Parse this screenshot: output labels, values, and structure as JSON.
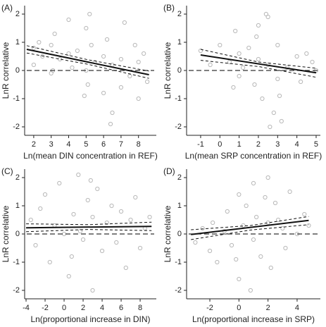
{
  "chart_data": [
    {
      "type": "scatter",
      "panel": "(A)",
      "xlabel": "Ln(mean DIN concentration in REF)",
      "ylabel": "LnR correlative",
      "xlim": [
        1.48,
        9.02
      ],
      "ylim": [
        -2.3,
        2.3
      ],
      "xticks": [
        2,
        3,
        4,
        5,
        6,
        7,
        8
      ],
      "yticks": [
        -2,
        -1,
        0,
        1,
        2
      ],
      "hline": 0,
      "series": [
        {
          "color": "#b8b8b8",
          "x": [
            2,
            2,
            2.3,
            2.5,
            3,
            3,
            3.2,
            3.5,
            4,
            4,
            4.2,
            4.5,
            5,
            5,
            5.1,
            5.3,
            5.5,
            6,
            6,
            6.2,
            6.5,
            6.5,
            7,
            7,
            7.2,
            7.5,
            8,
            8,
            8.3,
            8.5,
            5.2,
            6.4,
            3.1,
            4.9,
            7.8
          ],
          "y": [
            0.8,
            0.2,
            1.0,
            0.5,
            0.9,
            -0.1,
            1.3,
            0.4,
            0.6,
            1.8,
            0.1,
            0.7,
            1.5,
            0.0,
            -0.5,
            0.9,
            0.3,
            0.5,
            -0.8,
            1.1,
            -1.5,
            0.2,
            0.4,
            -0.6,
            1.7,
            -0.2,
            0.3,
            -1.0,
            0.6,
            -0.4,
            2.0,
            -1.9,
            0.0,
            -0.9,
            0.9
          ]
        }
      ],
      "fit": {
        "x": [
          1.6,
          8.6
        ],
        "y": [
          0.75,
          -0.15
        ]
      },
      "ci_upper": {
        "x": [
          1.6,
          5.1,
          8.6
        ],
        "y": [
          0.88,
          0.38,
          -0.02
        ]
      },
      "ci_lower": {
        "x": [
          1.6,
          5.1,
          8.6
        ],
        "y": [
          0.62,
          0.22,
          -0.28
        ]
      }
    },
    {
      "type": "scatter",
      "panel": "(B)",
      "xlabel": "Ln(mean SRP concentration in REF)",
      "ylabel": "LnR correlative",
      "xlim": [
        -1.73,
        5.22
      ],
      "ylim": [
        -2.3,
        2.3
      ],
      "xticks": [
        -1,
        0,
        1,
        2,
        3,
        4,
        5
      ],
      "yticks": [
        -2,
        -1,
        0,
        1,
        2
      ],
      "hline": 0,
      "series": [
        {
          "color": "#b8b8b8",
          "x": [
            -1,
            -0.5,
            0,
            0.5,
            0.8,
            1,
            1,
            1.2,
            1.5,
            1.8,
            2,
            2,
            2.2,
            2.5,
            2.5,
            2.8,
            3,
            3,
            3.2,
            3.5,
            4,
            4.2,
            4.5,
            5,
            0.7,
            2.4,
            3.1,
            1.9,
            2.6,
            4.8
          ],
          "y": [
            0.7,
            0.2,
            0.9,
            0.3,
            1.4,
            -0.2,
            0.6,
            0.1,
            0.8,
            -0.5,
            1.6,
            0.4,
            -1.0,
            1.9,
            0.2,
            -1.5,
            0.9,
            -0.3,
            -1.8,
            0.1,
            0.5,
            -0.4,
            0.6,
            0.0,
            -0.6,
            2.0,
            -0.9,
            1.2,
            -2.0,
            0.3
          ]
        }
      ],
      "fit": {
        "x": [
          -1,
          5
        ],
        "y": [
          0.55,
          -0.08
        ]
      },
      "ci_upper": {
        "x": [
          -1,
          2,
          5
        ],
        "y": [
          0.75,
          0.3,
          0.08
        ]
      },
      "ci_lower": {
        "x": [
          -1,
          2,
          5
        ],
        "y": [
          0.36,
          0.14,
          -0.24
        ]
      }
    },
    {
      "type": "scatter",
      "panel": "(C)",
      "xlabel": "Ln(proportional increase in DIN)",
      "ylabel": "LnR correlative",
      "xlim": [
        -4.15,
        9.7
      ],
      "ylim": [
        -2.3,
        2.3
      ],
      "xticks": [
        -4,
        -2,
        0,
        2,
        4,
        6,
        8
      ],
      "yticks": [
        -2,
        -1,
        0,
        1,
        2
      ],
      "hline": 0,
      "series": [
        {
          "color": "#b8b8b8",
          "x": [
            -3.5,
            -3,
            -2.5,
            -2,
            -1.5,
            -1,
            -0.5,
            0,
            0.5,
            1,
            1.5,
            2,
            2.5,
            3,
            3,
            3.5,
            4,
            4.5,
            5,
            5.5,
            6,
            6.5,
            7,
            7.5,
            8,
            8.5,
            9,
            2.8,
            0.8,
            1.7
          ],
          "y": [
            0.5,
            -0.4,
            0.9,
            1.4,
            -1.0,
            0.3,
            1.8,
            0.0,
            -1.5,
            0.7,
            2.1,
            -0.2,
            1.2,
            0.6,
            -2.0,
            1.6,
            -0.6,
            0.4,
            1.0,
            -0.3,
            0.8,
            -1.2,
            0.5,
            1.3,
            -0.5,
            0.2,
            0.6,
            1.9,
            -0.8,
            0.1
          ]
        }
      ],
      "fit": {
        "x": [
          -4,
          9.2
        ],
        "y": [
          0.22,
          0.27
        ]
      },
      "ci_upper": {
        "x": [
          -4,
          2.6,
          9.2
        ],
        "y": [
          0.36,
          0.33,
          0.42
        ]
      },
      "ci_lower": {
        "x": [
          -4,
          2.6,
          9.2
        ],
        "y": [
          0.08,
          0.16,
          0.12
        ]
      }
    },
    {
      "type": "scatter",
      "panel": "(D)",
      "xlabel": "Ln(proportional increase in SRP)",
      "ylabel": "LnR correlative",
      "xlim": [
        -3.6,
        5.6
      ],
      "ylim": [
        -2.3,
        2.3
      ],
      "xticks": [
        -2,
        0,
        2,
        4
      ],
      "yticks": [
        -2,
        -1,
        0,
        1,
        2
      ],
      "hline": 0,
      "series": [
        {
          "color": "#b8b8b8",
          "x": [
            -3,
            -2.5,
            -2,
            -1.8,
            -1.5,
            -1,
            -0.8,
            -0.5,
            0,
            0,
            0.3,
            0.5,
            1,
            1,
            1.2,
            1.5,
            2,
            2,
            2.2,
            2.5,
            3,
            3.2,
            3.5,
            4,
            4.5,
            0.8,
            1.8,
            -0.2,
            2.7,
            4.8
          ],
          "y": [
            -0.3,
            0.2,
            -0.6,
            0.4,
            -1.0,
            0.1,
            0.8,
            -0.4,
            1.4,
            -1.6,
            0.3,
            1.0,
            -0.2,
            1.8,
            0.6,
            -0.8,
            2.0,
            0.4,
            -1.2,
            1.1,
            0.2,
            -0.5,
            1.5,
            0.0,
            0.7,
            -2.0,
            1.3,
            -0.9,
            0.5,
            0.3
          ]
        }
      ],
      "fit": {
        "x": [
          -3.3,
          4.8
        ],
        "y": [
          -0.02,
          0.48
        ]
      },
      "ci_upper": {
        "x": [
          -3.3,
          0.8,
          4.8
        ],
        "y": [
          0.15,
          0.3,
          0.62
        ]
      },
      "ci_lower": {
        "x": [
          -3.3,
          0.8,
          4.8
        ],
        "y": [
          -0.2,
          0.14,
          0.33
        ]
      }
    }
  ]
}
